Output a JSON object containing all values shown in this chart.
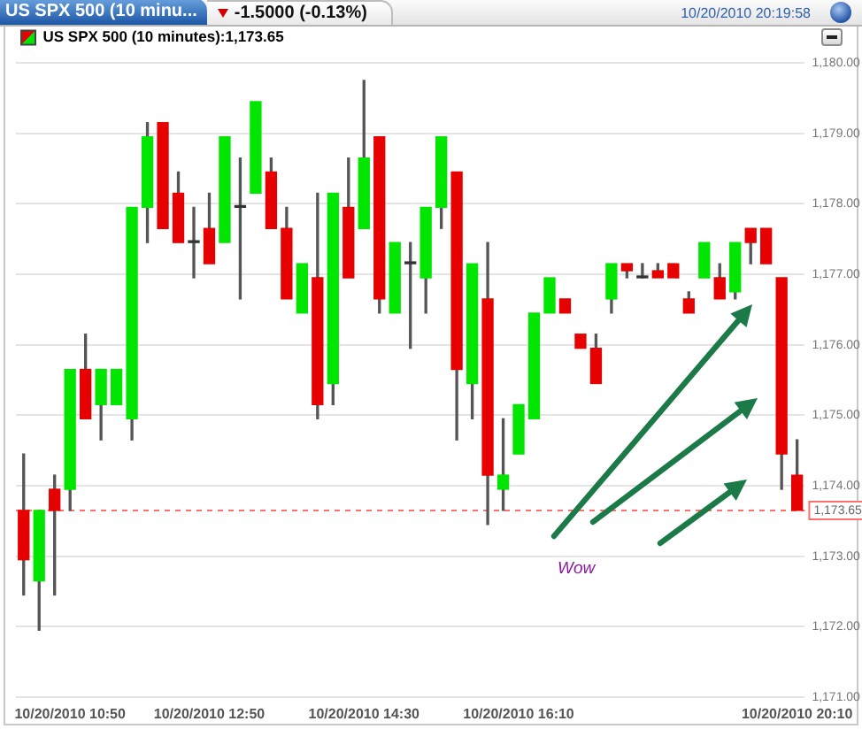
{
  "chart_data": {
    "type": "candlestick",
    "title": "US SPX 500 (10 minu...",
    "annotations": [
      "-1.5000 (-0.13%)",
      "10/20/2010 20:19:58",
      "Wow"
    ],
    "categories": [
      null,
      null,
      null,
      "10/20/2010 10:50",
      null,
      null,
      null,
      null,
      null,
      null,
      null,
      null,
      "10/20/2010 12:50",
      null,
      null,
      null,
      null,
      null,
      null,
      null,
      null,
      null,
      "10/20/2010 14:30",
      null,
      null,
      null,
      null,
      null,
      null,
      null,
      null,
      null,
      "10/20/2010 16:10",
      null,
      null,
      null,
      null,
      null,
      null,
      null,
      null,
      null,
      null,
      null,
      null,
      null,
      null,
      null,
      null,
      null,
      "10/20/2010 20:10"
    ],
    "series": [
      {
        "name": "US SPX 500 (10 minutes):1,173.65",
        "ohlc": [
          [
            1173.65,
            1174.45,
            1172.45,
            1172.95
          ],
          [
            1172.65,
            1173.65,
            1171.95,
            1173.65
          ],
          [
            1173.95,
            1174.15,
            1172.45,
            1173.65
          ],
          [
            1173.95,
            1175.65,
            1173.65,
            1175.65
          ],
          [
            1175.65,
            1176.15,
            1174.95,
            1174.95
          ],
          [
            1175.15,
            1175.65,
            1174.65,
            1175.65
          ],
          [
            1175.15,
            1175.65,
            1175.15,
            1175.65
          ],
          [
            1174.95,
            1177.95,
            1174.65,
            1177.95
          ],
          [
            1177.95,
            1179.15,
            1177.45,
            1178.95
          ],
          [
            1179.15,
            1179.15,
            1177.65,
            1177.65
          ],
          [
            1178.15,
            1178.45,
            1177.45,
            1177.45
          ],
          [
            1177.45,
            1177.95,
            1176.95,
            1177.45
          ],
          [
            1177.65,
            1178.15,
            1177.15,
            1177.15
          ],
          [
            1177.45,
            1178.95,
            1177.45,
            1178.95
          ],
          [
            1177.95,
            1178.65,
            1176.65,
            1177.95
          ],
          [
            1178.15,
            1179.45,
            1178.15,
            1179.45
          ],
          [
            1178.45,
            1178.65,
            1177.65,
            1177.65
          ],
          [
            1177.65,
            1177.95,
            1176.65,
            1176.65
          ],
          [
            1176.45,
            1177.15,
            1176.45,
            1177.15
          ],
          [
            1176.95,
            1178.15,
            1174.95,
            1175.15
          ],
          [
            1175.45,
            1178.15,
            1175.15,
            1178.15
          ],
          [
            1177.95,
            1178.65,
            1176.95,
            1176.95
          ],
          [
            1177.65,
            1179.75,
            1177.65,
            1178.65
          ],
          [
            1178.95,
            1178.95,
            1176.45,
            1176.65
          ],
          [
            1176.45,
            1177.45,
            1176.45,
            1177.45
          ],
          [
            1177.15,
            1177.45,
            1175.95,
            1177.15
          ],
          [
            1176.95,
            1177.95,
            1176.45,
            1177.95
          ],
          [
            1177.95,
            1178.95,
            1177.65,
            1178.95
          ],
          [
            1178.45,
            1178.45,
            1174.65,
            1175.65
          ],
          [
            1175.45,
            1177.15,
            1174.95,
            1177.15
          ],
          [
            1176.65,
            1177.45,
            1173.45,
            1174.15
          ],
          [
            1173.95,
            1174.95,
            1173.65,
            1174.15
          ],
          [
            1174.45,
            1175.15,
            1174.45,
            1175.15
          ],
          [
            1174.95,
            1176.45,
            1174.95,
            1176.45
          ],
          [
            1176.45,
            1176.95,
            1176.45,
            1176.95
          ],
          [
            1176.65,
            1176.65,
            1176.45,
            1176.45
          ],
          [
            1176.15,
            1176.15,
            1175.95,
            1175.95
          ],
          [
            1175.95,
            1176.15,
            1175.45,
            1175.45
          ],
          [
            1176.65,
            1177.15,
            1176.45,
            1177.15
          ],
          [
            1177.15,
            1177.15,
            1176.95,
            1177.05
          ],
          [
            1176.95,
            1177.15,
            1176.95,
            1176.95
          ],
          [
            1177.05,
            1177.15,
            1176.95,
            1176.95
          ],
          [
            1177.15,
            1177.15,
            1176.95,
            1176.95
          ],
          [
            1176.65,
            1176.75,
            1176.45,
            1176.45
          ],
          [
            1176.95,
            1177.45,
            1176.95,
            1177.45
          ],
          [
            1176.95,
            1177.15,
            1176.65,
            1176.65
          ],
          [
            1176.75,
            1177.45,
            1176.65,
            1177.45
          ],
          [
            1177.65,
            1177.65,
            1177.15,
            1177.45
          ],
          [
            1177.65,
            1177.65,
            1177.15,
            1177.15
          ],
          [
            1176.95,
            1176.95,
            1173.95,
            1174.45
          ],
          [
            1174.15,
            1174.65,
            1173.65,
            1173.65
          ]
        ],
        "colors": [
          "#e60000",
          "#00e600",
          "#e60000",
          "#00e600",
          "#e60000",
          "#00e600",
          "#00e600",
          "#00e600",
          "#00e600",
          "#e60000",
          "#e60000",
          "#333333",
          "#e60000",
          "#00e600",
          "#333333",
          "#00e600",
          "#e60000",
          "#e60000",
          "#00e600",
          "#e60000",
          "#00e600",
          "#e60000",
          "#00e600",
          "#e60000",
          "#00e600",
          "#333333",
          "#00e600",
          "#00e600",
          "#e60000",
          "#00e600",
          "#e60000",
          "#00e600",
          "#00e600",
          "#00e600",
          "#00e600",
          "#e60000",
          "#e60000",
          "#e60000",
          "#00e600",
          "#e60000",
          "#333333",
          "#e60000",
          "#e60000",
          "#e60000",
          "#00e600",
          "#e60000",
          "#00e600",
          "#e60000",
          "#e60000",
          "#e60000",
          "#e60000"
        ]
      }
    ],
    "ylim": [
      1171,
      1180
    ],
    "yticks": [
      {
        "value": 1171,
        "label": "1,171.00"
      },
      {
        "value": 1172,
        "label": "1,172.00"
      },
      {
        "value": 1173,
        "label": "1,173.00"
      },
      {
        "value": 1174,
        "label": "1,174.00"
      },
      {
        "value": 1175,
        "label": "1,175.00"
      },
      {
        "value": 1176,
        "label": "1,176.00"
      },
      {
        "value": 1177,
        "label": "1,177.00"
      },
      {
        "value": 1178,
        "label": "1,178.00"
      },
      {
        "value": 1179,
        "label": "1,179.00"
      },
      {
        "value": 1180,
        "label": "1,180.00"
      }
    ],
    "grid": "y",
    "legend": "top left",
    "ref_lines": [
      {
        "axis": "y",
        "value": 1173.65,
        "label": "1,173.65",
        "color": "#ff6f6f",
        "line_style": "dashed"
      }
    ]
  }
}
